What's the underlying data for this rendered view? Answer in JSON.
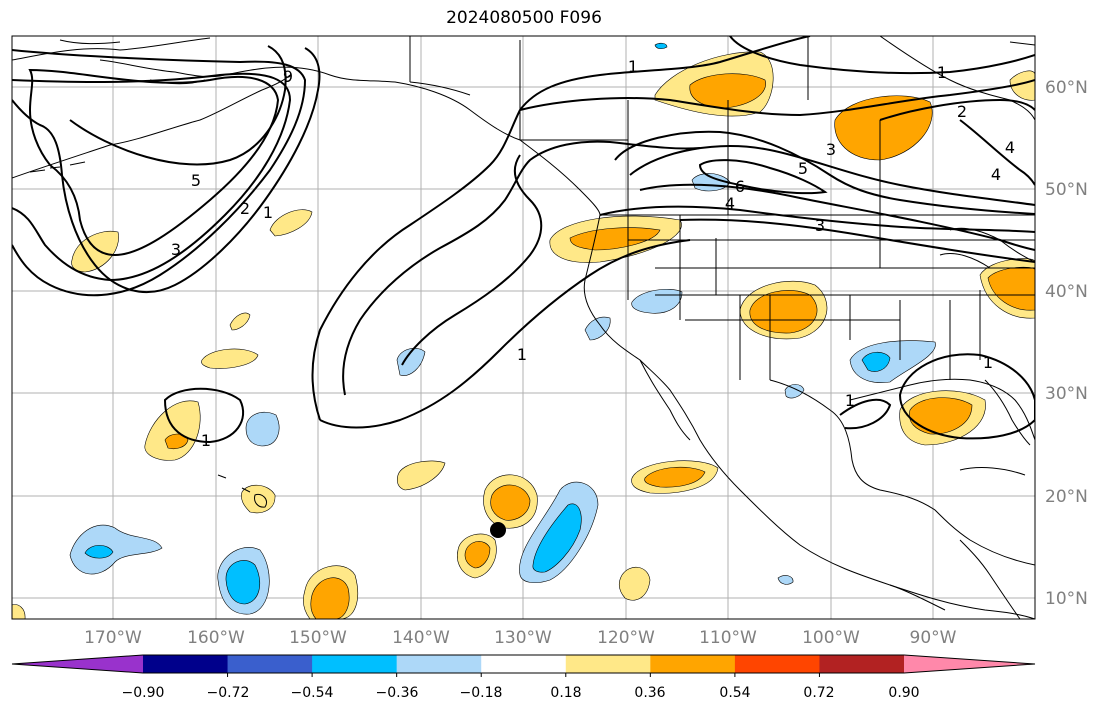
{
  "title": "2024080500 F096",
  "lon_ticks": [
    "170°W",
    "160°W",
    "150°W",
    "140°W",
    "130°W",
    "120°W",
    "110°W",
    "100°W",
    "90°W"
  ],
  "lat_ticks": [
    "60°N",
    "50°N",
    "40°N",
    "30°N",
    "20°N",
    "10°N"
  ],
  "colorbar": {
    "tick_labels": [
      "−0.90",
      "−0.72",
      "−0.54",
      "−0.36",
      "−0.18",
      "0.18",
      "0.36",
      "0.54",
      "0.72",
      "0.90"
    ],
    "colors": [
      "#9932cc",
      "#00008b",
      "#3a5fcd",
      "#00bfff",
      "#add8f8",
      "#ffffff",
      "#ffe888",
      "#ffa500",
      "#ff4500",
      "#b22222",
      "#ff88aa"
    ]
  },
  "contour_labels": [
    "1",
    "1",
    "1",
    "1",
    "1",
    "1",
    "1",
    "2",
    "2",
    "3",
    "3",
    "3",
    "4",
    "4",
    "4",
    "5",
    "5",
    "6",
    "9"
  ],
  "marker": "black-dot"
}
